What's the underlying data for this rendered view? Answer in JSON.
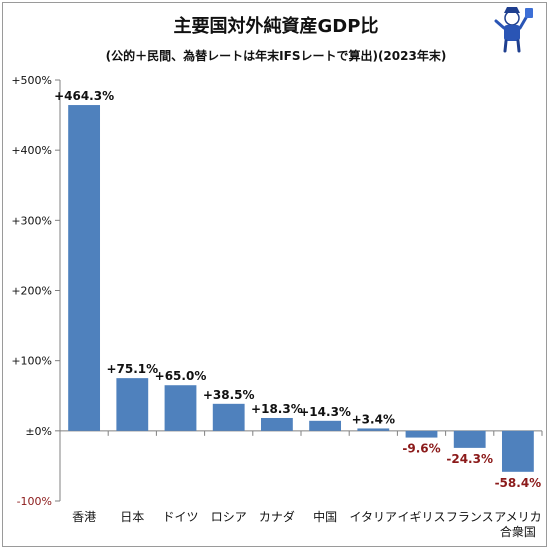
{
  "chart_data": {
    "type": "bar",
    "title": "主要国対外純資産GDP比",
    "subtitle": "(公的＋民間、為替レートは年末IFSレートで算出)(2023年末)",
    "categories": [
      "香港",
      "日本",
      "ドイツ",
      "ロシア",
      "カナダ",
      "中国",
      "イタリア",
      "イギリス",
      "フランス",
      "アメリカ合衆国"
    ],
    "category_lines": [
      [
        "香港"
      ],
      [
        "日本"
      ],
      [
        "ドイツ"
      ],
      [
        "ロシア"
      ],
      [
        "カナダ"
      ],
      [
        "中国"
      ],
      [
        "イタリア"
      ],
      [
        "イギリス"
      ],
      [
        "フランス"
      ],
      [
        "アメリカ",
        "合衆国"
      ]
    ],
    "values": [
      464.3,
      75.1,
      65.0,
      38.5,
      18.3,
      14.3,
      3.4,
      -9.6,
      -24.3,
      -58.4
    ],
    "data_labels": [
      "+464.3%",
      "+75.1%",
      "+65.0%",
      "+38.5%",
      "+18.3%",
      "+14.3%",
      "+3.4%",
      "-9.6%",
      "-24.3%",
      "-58.4%"
    ],
    "yticks": [
      -100,
      0,
      100,
      200,
      300,
      400,
      500
    ],
    "ytick_labels": [
      "-100%",
      "±0%",
      "+100%",
      "+200%",
      "+300%",
      "+400%",
      "+500%"
    ],
    "ylim": [
      -100,
      500
    ],
    "grid": false,
    "legend": "none",
    "xlabel": "",
    "ylabel": "",
    "colors": {
      "bar": "#4f81bd",
      "axis": "#808080",
      "negative_text": "#8b1a1a",
      "text": "#111111"
    }
  },
  "decoration": {
    "icon": "mascot-character-icon"
  }
}
